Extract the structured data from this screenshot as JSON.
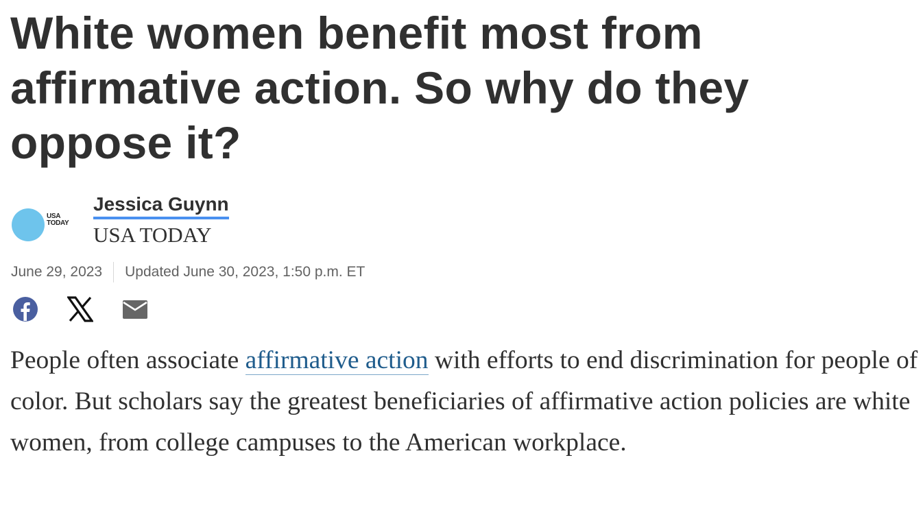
{
  "headline": "White women benefit most from affirmative action. So why do they oppose it?",
  "byline": {
    "logo_text": "USA TODAY",
    "author": "Jessica Guynn",
    "organization": "USA TODAY",
    "logo_color": "#6ec4ec"
  },
  "dates": {
    "published": "June 29, 2023",
    "updated": "Updated June 30, 2023, 1:50 p.m. ET"
  },
  "share": [
    {
      "icon": "facebook-icon"
    },
    {
      "icon": "x-icon"
    },
    {
      "icon": "email-icon"
    }
  ],
  "body": {
    "before_link": "People often associate ",
    "link_text": "affirmative action",
    "after_link": " with efforts to end discrimination for people of color. But scholars say the greatest beneficiaries of affirmative action policies are white women, from college campuses to the American workplace."
  }
}
